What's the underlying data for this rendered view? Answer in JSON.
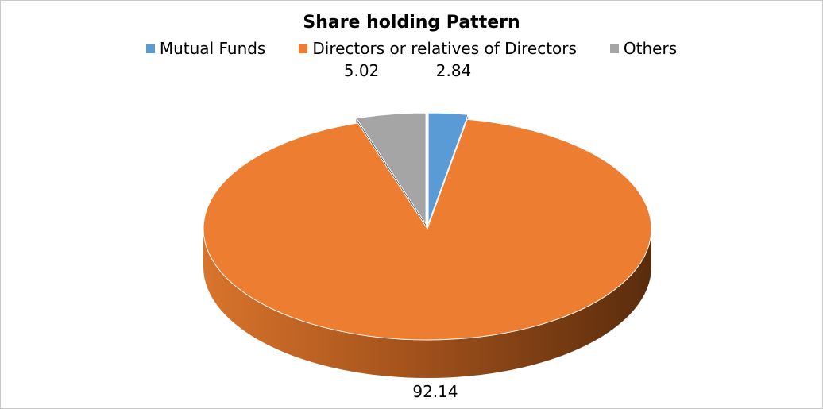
{
  "chart_data": {
    "type": "pie",
    "title": "Share holding  Pattern",
    "categories": [
      "Mutual Funds",
      "Directors or relatives of Directors",
      "Others"
    ],
    "values": [
      2.84,
      92.14,
      5.02
    ],
    "value_labels": [
      "2.84",
      "92.14",
      "5.02"
    ],
    "colors": [
      "#5b9bd5",
      "#ed7d31",
      "#a5a5a5"
    ],
    "legend_position": "top",
    "style": "3d-exploded"
  }
}
